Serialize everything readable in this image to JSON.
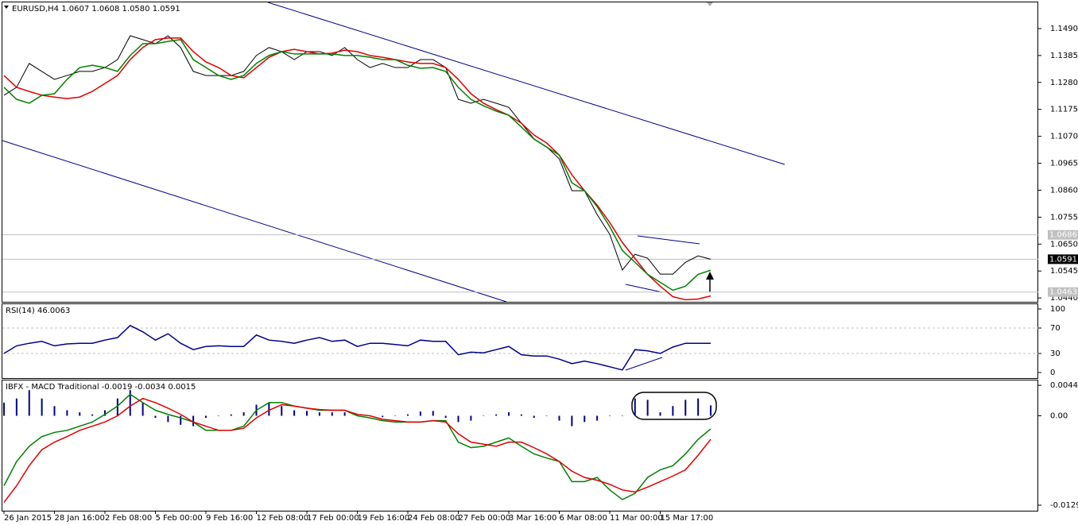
{
  "chart_data": [
    {
      "type": "line",
      "title": "EURUSD,H4  1.0607 1.0608 1.0580 1.0591",
      "ylim": [
        1.0425,
        1.1592
      ],
      "yticks": [
        {
          "value": 1.149,
          "label": "1.1490"
        },
        1.1385,
        {
          "value": 1.128,
          "label": "1.1280"
        },
        1.1175,
        {
          "value": 1.107,
          "label": "1.1070"
        },
        1.0965,
        {
          "value": 1.086,
          "label": "1.0860"
        },
        1.0755,
        {
          "value": 1.065,
          "label": "1.0650"
        },
        1.0545,
        {
          "value": 1.044,
          "label": "1.0440"
        }
      ],
      "levels": [
        1.0686,
        1.0463
      ],
      "current": 1.0591,
      "series": [
        {
          "color": "#000000",
          "values": [
            1.123,
            1.1261,
            1.1354,
            1.1323,
            1.1292,
            1.1307,
            1.1323,
            1.1323,
            1.1338,
            1.1369,
            1.1462,
            1.1447,
            1.1431,
            1.1462,
            1.1416,
            1.1323,
            1.1307,
            1.1307,
            1.1307,
            1.1323,
            1.1385,
            1.1416,
            1.14,
            1.1369,
            1.14,
            1.14,
            1.1385,
            1.1416,
            1.1369,
            1.1338,
            1.1354,
            1.1338,
            1.1338,
            1.1369,
            1.1369,
            1.1338,
            1.1214,
            1.1199,
            1.1214,
            1.1199,
            1.1183,
            1.1121,
            1.106,
            1.1029,
            1.0982,
            1.0858,
            1.0858,
            1.0765,
            1.0688,
            1.0549,
            1.061,
            1.0595,
            1.0533,
            1.0533,
            1.0579,
            1.0604,
            1.0591
          ]
        },
        {
          "color": "#e00000",
          "values": [
            1.1307,
            1.1261,
            1.1245,
            1.123,
            1.1223,
            1.1217,
            1.1223,
            1.1245,
            1.1276,
            1.1307,
            1.1369,
            1.1416,
            1.1447,
            1.1453,
            1.1453,
            1.14,
            1.136,
            1.1338,
            1.1307,
            1.1298,
            1.1338,
            1.1378,
            1.14,
            1.1409,
            1.14,
            1.1391,
            1.1394,
            1.1406,
            1.14,
            1.1385,
            1.1378,
            1.1369,
            1.136,
            1.1354,
            1.1354,
            1.1338,
            1.1292,
            1.1236,
            1.1199,
            1.1174,
            1.1152,
            1.1121,
            1.1075,
            1.1044,
            1.0997,
            1.092,
            1.0858,
            1.0802,
            1.0734,
            1.0656,
            1.0594,
            1.0532,
            1.0486,
            1.0445,
            1.0433,
            1.0436,
            1.0448
          ]
        },
        {
          "color": "#008000",
          "values": [
            1.1261,
            1.1214,
            1.1199,
            1.123,
            1.1236,
            1.1292,
            1.1338,
            1.1347,
            1.1338,
            1.1323,
            1.1385,
            1.1431,
            1.1431,
            1.144,
            1.1447,
            1.1369,
            1.1338,
            1.1307,
            1.1292,
            1.1307,
            1.1354,
            1.1385,
            1.14,
            1.1391,
            1.1391,
            1.1391,
            1.1391,
            1.1385,
            1.1385,
            1.1378,
            1.1369,
            1.1369,
            1.1347,
            1.1335,
            1.1338,
            1.1323,
            1.1261,
            1.1214,
            1.1189,
            1.1168,
            1.1152,
            1.1106,
            1.1059,
            1.1028,
            1.0997,
            1.0889,
            1.0858,
            1.0796,
            1.0718,
            1.0625,
            1.0579,
            1.0532,
            1.0501,
            1.047,
            1.0486,
            1.0532,
            1.0548
          ]
        }
      ]
    },
    {
      "type": "line",
      "title": "RSI(14) 46.0063",
      "ylim": [
        -8.75,
        107.5
      ],
      "yticks": [
        100,
        70,
        30,
        0
      ],
      "levels": [
        70,
        30
      ],
      "series": [
        {
          "color": "#00008b",
          "values": [
            30,
            42,
            46,
            49,
            42,
            45,
            46,
            46,
            51,
            55,
            74,
            64,
            51,
            61,
            46,
            36,
            41,
            42,
            41,
            41,
            59,
            51,
            49,
            46,
            51,
            55,
            49,
            51,
            41,
            46,
            46,
            44,
            42,
            51,
            49,
            49,
            28,
            32,
            31,
            36,
            41,
            28,
            26,
            26,
            21,
            14,
            18,
            14,
            9,
            4,
            36,
            34,
            30,
            40,
            46,
            46,
            46
          ]
        }
      ]
    },
    {
      "type": "macd",
      "title": "IBFX - MACD Traditional -0.0019 -0.0034 0.0015",
      "ylim": [
        -0.0137,
        0.0051
      ],
      "yticks": [
        0.0044,
        {
          "value": 0,
          "label": "0.00"
        },
        -0.0129
      ],
      "categories": [
        "26 Jan 2015",
        null,
        null,
        null,
        "28 Jan 16:00",
        null,
        null,
        null,
        "2 Feb 08:00",
        null,
        null,
        null,
        "5 Feb 00:00",
        null,
        null,
        null,
        "9 Feb 16:00",
        null,
        null,
        null,
        "12 Feb 08:00",
        null,
        null,
        null,
        "17 Feb 00:00",
        null,
        null,
        null,
        "19 Feb 16:00",
        null,
        null,
        null,
        "24 Feb 08:00",
        null,
        null,
        null,
        "27 Feb 00:00",
        null,
        null,
        null,
        "3 Mar 16:00",
        null,
        null,
        null,
        "6 Mar 08:00",
        null,
        null,
        null,
        "11 Mar 00:00",
        null,
        null,
        null,
        "15 Mar 17:00",
        null,
        null,
        null,
        null
      ],
      "series": [
        {
          "type": "bar",
          "color": "#00008b",
          "values": [
            0.0019,
            0.0025,
            0.0037,
            0.0025,
            0.0014,
            0.0008,
            0.0005,
            0.0002,
            0.0008,
            0.0025,
            0.0037,
            0.0019,
            -0.0003,
            -0.0009,
            -0.0013,
            -0.0015,
            -0.0003,
            0,
            0.0002,
            0.0005,
            0.0016,
            0.0019,
            0.0014,
            0.0008,
            0.0007,
            0.0005,
            0.0005,
            0.0005,
            0,
            0,
            -0.0002,
            0,
            0.0002,
            0.0006,
            0.0007,
            -0.0003,
            -0.0009,
            -0.0007,
            0,
            0.0002,
            0.0005,
            0.0002,
            -0.0003,
            0,
            -0.0007,
            -0.0015,
            -0.0009,
            -0.0007,
            0,
            0,
            0.0025,
            0.0023,
            0.0005,
            0.0014,
            0.0023,
            0.0025,
            0.0015
          ]
        },
        {
          "type": "line",
          "color": "#008000",
          "values": [
            -0.0101,
            -0.0066,
            -0.0044,
            -0.003,
            -0.0024,
            -0.0021,
            -0.0015,
            -0.0009,
            0.0002,
            0.0014,
            0.0031,
            0.0019,
            0.0008,
            0.0002,
            -0.0003,
            -0.0009,
            -0.0021,
            -0.0021,
            -0.0021,
            -0.0015,
            0.0008,
            0.0019,
            0.0019,
            0.0014,
            0.0011,
            0.0008,
            0.0008,
            0.0008,
            0,
            -0.0003,
            -0.0007,
            -0.0009,
            -0.0009,
            -0.0009,
            -0.0007,
            -0.0007,
            -0.0038,
            -0.0046,
            -0.0044,
            -0.0038,
            -0.0032,
            -0.0044,
            -0.0055,
            -0.0061,
            -0.0066,
            -0.0095,
            -0.0095,
            -0.0089,
            -0.0107,
            -0.0121,
            -0.0112,
            -0.0089,
            -0.0078,
            -0.0072,
            -0.0055,
            -0.0034,
            -0.0019
          ]
        },
        {
          "type": "line",
          "color": "#e00000",
          "values": [
            -0.0125,
            -0.0101,
            -0.0072,
            -0.0049,
            -0.0038,
            -0.003,
            -0.0021,
            -0.0015,
            -0.0009,
            0,
            0.0014,
            0.0025,
            0.0019,
            0.0011,
            0.0002,
            -0.0009,
            -0.0015,
            -0.0021,
            -0.0021,
            -0.0018,
            -0.0003,
            0.0008,
            0.0016,
            0.0014,
            0.0011,
            0.0009,
            0.0008,
            0.0008,
            0.0002,
            0,
            -0.0005,
            -0.0007,
            -0.0009,
            -0.0009,
            -0.0007,
            -0.0009,
            -0.0026,
            -0.0038,
            -0.0041,
            -0.0044,
            -0.0038,
            -0.0038,
            -0.0046,
            -0.0055,
            -0.0066,
            -0.008,
            -0.0089,
            -0.0093,
            -0.0099,
            -0.0107,
            -0.011,
            -0.0103,
            -0.0095,
            -0.0087,
            -0.0078,
            -0.0057,
            -0.0034
          ]
        }
      ]
    }
  ]
}
